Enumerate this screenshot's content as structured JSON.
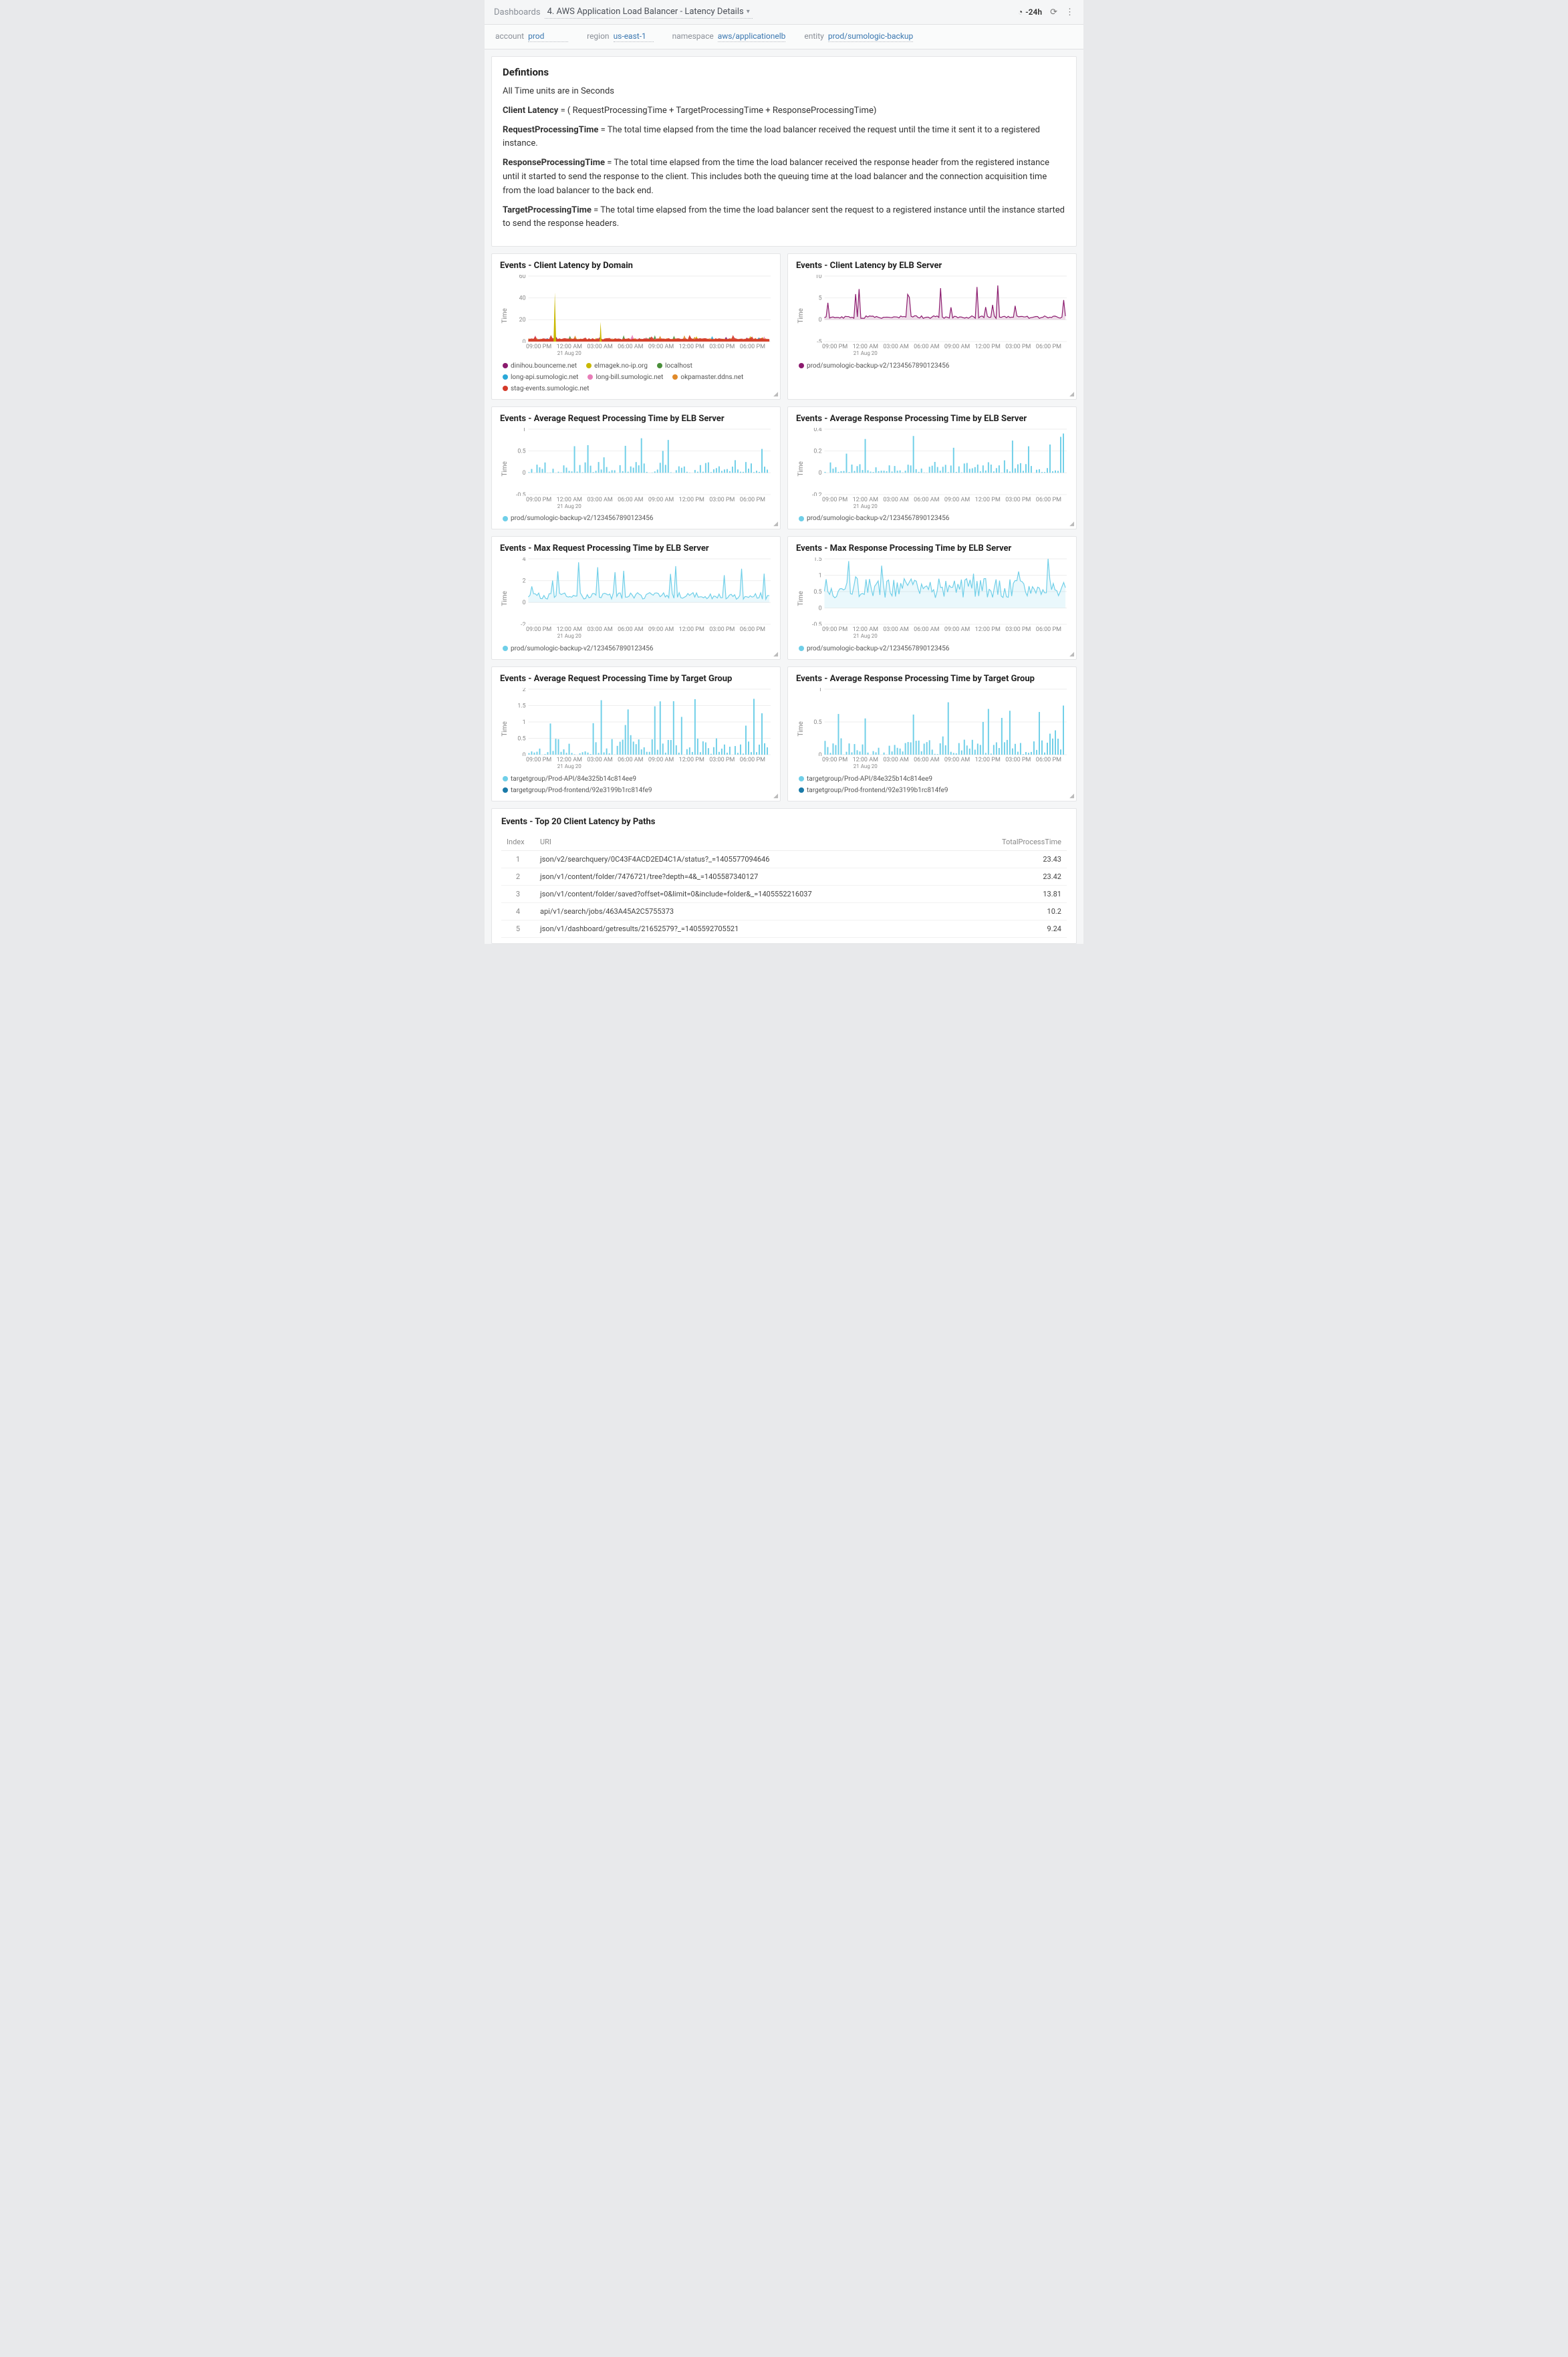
{
  "breadcrumb": {
    "root": "Dashboards",
    "title": "4. AWS Application Load Balancer - Latency Details"
  },
  "timeRange": "-24h",
  "filters": [
    {
      "label": "account",
      "value": "prod"
    },
    {
      "label": "region",
      "value": "us-east-1"
    },
    {
      "label": "namespace",
      "value": "aws/applicationelb"
    },
    {
      "label": "entity",
      "value": "prod/sumologic-backup"
    }
  ],
  "definitions": {
    "title": "Defintions",
    "lines": [
      {
        "bold": "",
        "text": "All Time units are in Seconds"
      },
      {
        "bold": "Client Latency",
        "text": " = ( RequestProcessingTime + TargetProcessingTime + ResponseProcessingTime)"
      },
      {
        "bold": "RequestProcessingTime",
        "text": " = The total time elapsed from the time the load balancer received the request until the time it sent it to a registered instance."
      },
      {
        "bold": "ResponseProcessingTime",
        "text": " = The total time elapsed from the time the load balancer received the response header from the registered instance until it started to send the response to the client. This includes both the queuing time at the load balancer and the connection acquisition time from the load balancer to the back end."
      },
      {
        "bold": "TargetProcessingTime",
        "text": " = The total time elapsed from the time the load balancer sent the request to a registered instance until the instance started to send the response headers."
      }
    ]
  },
  "charts": {
    "clientLatencyDomain": {
      "title": "Events - Client Latency by Domain",
      "type": "line-multi",
      "ylabel": "Time",
      "ylim": [
        0,
        60
      ],
      "yticks": [
        0,
        20,
        40,
        60
      ],
      "xticks": [
        "09:00 PM",
        {
          "t": "12:00 AM",
          "s": "21 Aug 20"
        },
        "03:00 AM",
        "06:00 AM",
        "09:00 AM",
        "12:00 PM",
        "03:00 PM",
        "06:00 PM"
      ],
      "colors": {
        "dinihou.bounceme.net": "#8b1a6e",
        "elmagek.no-ip.org": "#c9b800",
        "localhost": "#4a8f3a",
        "long-api.sumologic.net": "#2aa8d8",
        "long-bill.sumologic.net": "#e87db8",
        "okpamaster.ddns.net": "#e08a2a",
        "stag-events.sumologic.net": "#d43a2a"
      },
      "legend": [
        "dinihou.bounceme.net",
        "elmagek.no-ip.org",
        "localhost",
        "long-api.sumologic.net",
        "long-bill.sumologic.net",
        "okpamaster.ddns.net",
        "stag-events.sumologic.net"
      ],
      "background": "#ffffff",
      "grid_color": "#eeeeee"
    },
    "clientLatencyElb": {
      "title": "Events - Client Latency by ELB Server",
      "type": "line",
      "ylabel": "Time",
      "ylim": [
        -5,
        10
      ],
      "yticks": [
        -5,
        0,
        5,
        10
      ],
      "xticks": [
        "09:00 PM",
        {
          "t": "12:00 AM",
          "s": "21 Aug 20"
        },
        "03:00 AM",
        "06:00 AM",
        "09:00 AM",
        "12:00 PM",
        "03:00 PM",
        "06:00 PM"
      ],
      "color": "#8b1a6e",
      "legend": [
        {
          "label": "prod/sumologic-backup-v2/1234567890123456",
          "color": "#8b1a6e"
        }
      ]
    },
    "avgReqElb": {
      "title": "Events - Average Request Processing Time by ELB Server",
      "type": "bar",
      "ylabel": "Time",
      "ylim": [
        -0.5,
        1
      ],
      "yticks": [
        -0.5,
        0,
        0.5,
        1
      ],
      "xticks": [
        "09:00 PM",
        {
          "t": "12:00 AM",
          "s": "21 Aug 20"
        },
        "03:00 AM",
        "06:00 AM",
        "09:00 AM",
        "12:00 PM",
        "03:00 PM",
        "06:00 PM"
      ],
      "color": "#6fcfe8",
      "legend": [
        {
          "label": "prod/sumologic-backup-v2/1234567890123456",
          "color": "#6fcfe8"
        }
      ]
    },
    "avgRespElb": {
      "title": "Events - Average Response Processing Time by ELB Server",
      "type": "bar",
      "ylabel": "Time",
      "ylim": [
        -0.2,
        0.4
      ],
      "yticks": [
        -0.2,
        0,
        0.2,
        0.4
      ],
      "xticks": [
        "09:00 PM",
        {
          "t": "12:00 AM",
          "s": "21 Aug 20"
        },
        "03:00 AM",
        "06:00 AM",
        "09:00 AM",
        "12:00 PM",
        "03:00 PM",
        "06:00 PM"
      ],
      "color": "#6fcfe8",
      "legend": [
        {
          "label": "prod/sumologic-backup-v2/1234567890123456",
          "color": "#6fcfe8"
        }
      ]
    },
    "maxReqElb": {
      "title": "Events - Max Request Processing Time by ELB Server",
      "type": "line",
      "ylabel": "Time",
      "ylim": [
        -2,
        4
      ],
      "yticks": [
        -2,
        0,
        2,
        4
      ],
      "xticks": [
        "09:00 PM",
        {
          "t": "12:00 AM",
          "s": "21 Aug 20"
        },
        "03:00 AM",
        "06:00 AM",
        "09:00 AM",
        "12:00 PM",
        "03:00 PM",
        "06:00 PM"
      ],
      "color": "#6fcfe8",
      "legend": [
        {
          "label": "prod/sumologic-backup-v2/1234567890123456",
          "color": "#6fcfe8"
        }
      ]
    },
    "maxRespElb": {
      "title": "Events - Max Response Processing Time by ELB Server",
      "type": "line",
      "ylabel": "Time",
      "ylim": [
        -0.5,
        1.5
      ],
      "yticks": [
        -0.5,
        0,
        0.5,
        1,
        1.5
      ],
      "xticks": [
        "09:00 PM",
        {
          "t": "12:00 AM",
          "s": "21 Aug 20"
        },
        "03:00 AM",
        "06:00 AM",
        "09:00 AM",
        "12:00 PM",
        "03:00 PM",
        "06:00 PM"
      ],
      "color": "#6fcfe8",
      "legend": [
        {
          "label": "prod/sumologic-backup-v2/1234567890123456",
          "color": "#6fcfe8"
        }
      ]
    },
    "avgReqTg": {
      "title": "Events - Average Request Processing Time by Target Group",
      "type": "bar",
      "ylabel": "Time",
      "ylim": [
        0,
        2
      ],
      "yticks": [
        0,
        0.5,
        1,
        1.5,
        2
      ],
      "xticks": [
        "09:00 PM",
        {
          "t": "12:00 AM",
          "s": "21 Aug 20"
        },
        "03:00 AM",
        "06:00 AM",
        "09:00 AM",
        "12:00 PM",
        "03:00 PM",
        "06:00 PM"
      ],
      "color": "#6fcfe8",
      "legend": [
        {
          "label": "targetgroup/Prod-API/84e325b14c814ee9",
          "color": "#6fcfe8"
        },
        {
          "label": "targetgroup/Prod-frontend/92e3199b1rc814fe9",
          "color": "#1a7aa8"
        }
      ]
    },
    "avgRespTg": {
      "title": "Events - Average Response Processing Time by Target Group",
      "type": "bar",
      "ylabel": "Time",
      "ylim": [
        0,
        1
      ],
      "yticks": [
        0,
        0.5,
        1
      ],
      "xticks": [
        "09:00 PM",
        {
          "t": "12:00 AM",
          "s": "21 Aug 20"
        },
        "03:00 AM",
        "06:00 AM",
        "09:00 AM",
        "12:00 PM",
        "03:00 PM",
        "06:00 PM"
      ],
      "color": "#6fcfe8",
      "legend": [
        {
          "label": "targetgroup/Prod-API/84e325b14c814ee9",
          "color": "#6fcfe8"
        },
        {
          "label": "targetgroup/Prod-frontend/92e3199b1rc814fe9",
          "color": "#1a7aa8"
        }
      ]
    }
  },
  "table": {
    "title": "Events - Top 20 Client Latency by Paths",
    "columns": [
      "Index",
      "URI",
      "TotalProcessTime"
    ],
    "rows": [
      [
        "1",
        "json/v2/searchquery/0C43F4ACD2ED4C1A/status?_=1405577094646",
        "23.43"
      ],
      [
        "2",
        "json/v1/content/folder/7476721/tree?depth=4&_=1405587340127",
        "23.42"
      ],
      [
        "3",
        "json/v1/content/folder/saved?offset=0&limit=0&include=folder&_=1405552216037",
        "13.81"
      ],
      [
        "4",
        "api/v1/search/jobs/463A45A2C5755373",
        "10.2"
      ],
      [
        "5",
        "json/v1/dashboard/getresults/21652579?_=1405592705521",
        "9.24"
      ]
    ]
  }
}
